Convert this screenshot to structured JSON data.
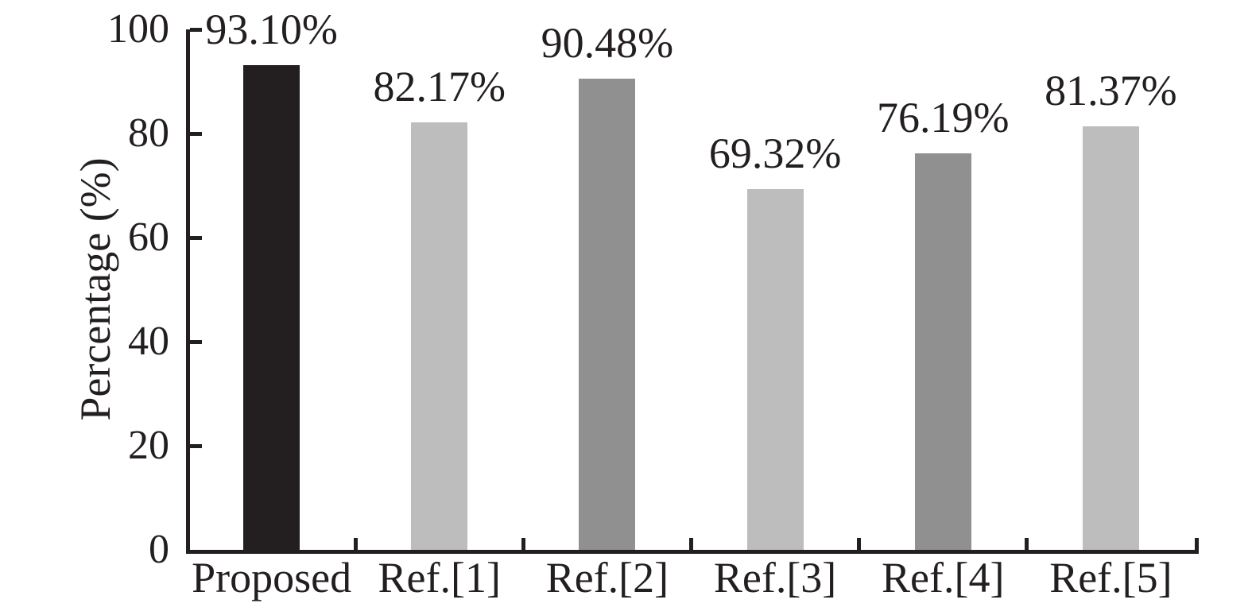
{
  "chart_data": {
    "type": "bar",
    "title": "",
    "xlabel": "",
    "ylabel": "Percentage (%)",
    "categories": [
      "Proposed",
      "Ref.[1]",
      "Ref.[2]",
      "Ref.[3]",
      "Ref.[4]",
      "Ref.[5]"
    ],
    "values": [
      93.1,
      82.17,
      90.48,
      69.32,
      76.19,
      81.37
    ],
    "value_labels": [
      "93.10%",
      "82.17%",
      "90.48%",
      "69.32%",
      "76.19%",
      "81.37%"
    ],
    "bar_colors": [
      "#231f20",
      "#bdbdbd",
      "#909090",
      "#bdbdbd",
      "#909090",
      "#bdbdbd"
    ],
    "ylim": [
      0,
      100
    ],
    "yticks": [
      0,
      20,
      40,
      60,
      80,
      100
    ],
    "ytick_labels": [
      "0",
      "20",
      "40",
      "60",
      "80",
      "100"
    ],
    "grid": false,
    "legend_position": "none",
    "axis_color": "#231f20",
    "text_color": "#231f20",
    "background_color": "#ffffff"
  }
}
